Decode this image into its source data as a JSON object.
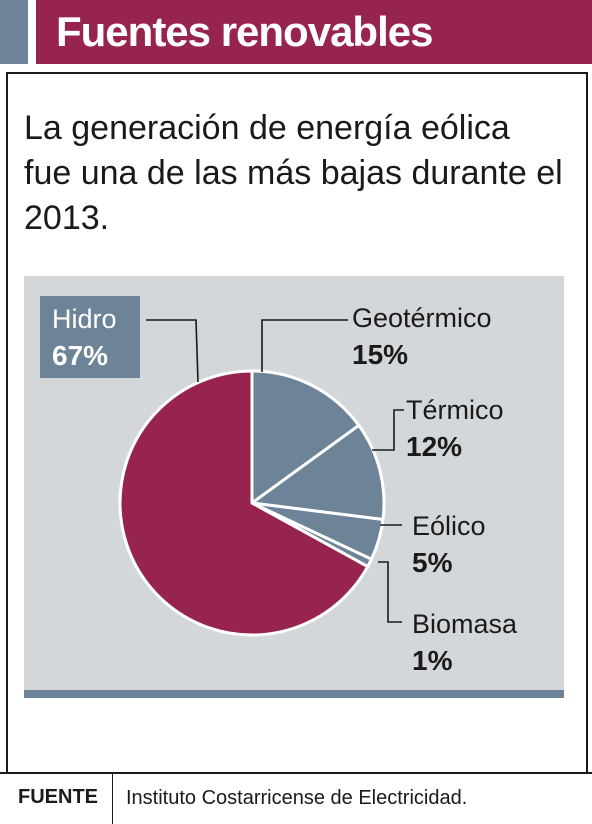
{
  "header": {
    "title": "Fuentes renovables"
  },
  "subtitle": "La generación de energía eólica fue una de las más bajas durante el 2013.",
  "chart_data": {
    "type": "pie",
    "categories": [
      "Hidro",
      "Geotérmico",
      "Térmico",
      "Eólico",
      "Biomasa"
    ],
    "values": [
      67,
      15,
      12,
      5,
      1
    ],
    "labels": [
      "67%",
      "15%",
      "12%",
      "5%",
      "1%"
    ],
    "colors": [
      "#97244f",
      "#6d8397",
      "#6d8397",
      "#6d8397",
      "#6d8397"
    ],
    "label_highlight": "#6d8397",
    "title": "",
    "legend": "none"
  },
  "footer": {
    "label": "FUENTE",
    "source": "Instituto Costarricense de Electricidad."
  }
}
